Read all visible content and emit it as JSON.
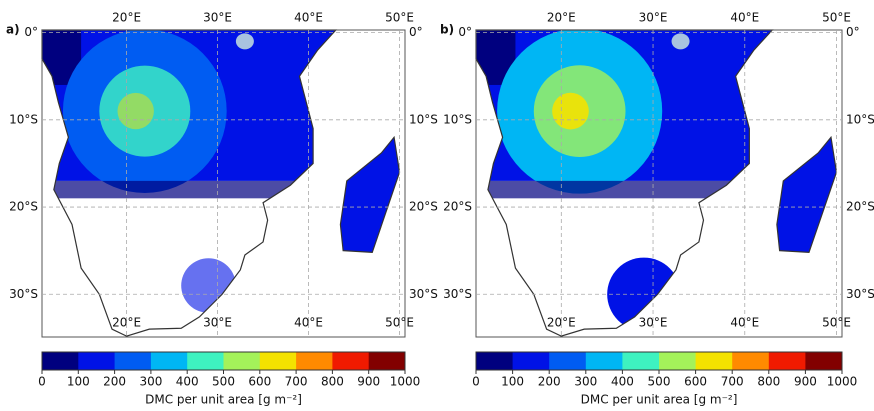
{
  "panels": [
    {
      "label": "a)",
      "lon_range": [
        10.7,
        50.6
      ],
      "lat_range": [
        -34.9,
        0.3
      ],
      "lon_ticks": [
        {
          "value": 20,
          "label": "20°E"
        },
        {
          "value": 30,
          "label": "30°E"
        },
        {
          "value": 40,
          "label": "40°E"
        },
        {
          "value": 50,
          "label": "50°E"
        }
      ],
      "lat_ticks": [
        {
          "value": 0,
          "label": "0°"
        },
        {
          "value": -10,
          "label": "10°S"
        },
        {
          "value": -20,
          "label": "20°S"
        },
        {
          "value": -30,
          "label": "30°S"
        }
      ],
      "colorbar": {
        "ticks": [
          0,
          100,
          200,
          300,
          400,
          500,
          600,
          700,
          800,
          900,
          1000
        ],
        "colors": [
          "#00007f",
          "#0012e6",
          "#005cf2",
          "#00b6f4",
          "#3ef2c0",
          "#a4f25a",
          "#f4e200",
          "#ff8a00",
          "#f01a00",
          "#820000"
        ],
        "label": "DMC per unit area [g m⁻²]"
      }
    },
    {
      "label": "b)",
      "lon_range": [
        10.7,
        50.6
      ],
      "lat_range": [
        -34.9,
        0.3
      ],
      "lon_ticks": [
        {
          "value": 20,
          "label": "20°E"
        },
        {
          "value": 30,
          "label": "30°E"
        },
        {
          "value": 40,
          "label": "40°E"
        },
        {
          "value": 50,
          "label": "50°E"
        }
      ],
      "lat_ticks": [
        {
          "value": 0,
          "label": "0°"
        },
        {
          "value": -10,
          "label": "10°S"
        },
        {
          "value": -20,
          "label": "20°S"
        },
        {
          "value": -30,
          "label": "30°S"
        }
      ],
      "colorbar": {
        "ticks": [
          0,
          100,
          200,
          300,
          400,
          500,
          600,
          700,
          800,
          900,
          1000
        ],
        "colors": [
          "#00007f",
          "#0012e6",
          "#005cf2",
          "#00b6f4",
          "#3ef2c0",
          "#a4f25a",
          "#f4e200",
          "#ff8a00",
          "#f01a00",
          "#820000"
        ],
        "label": "DMC per unit area [g m⁻²]"
      }
    }
  ]
}
